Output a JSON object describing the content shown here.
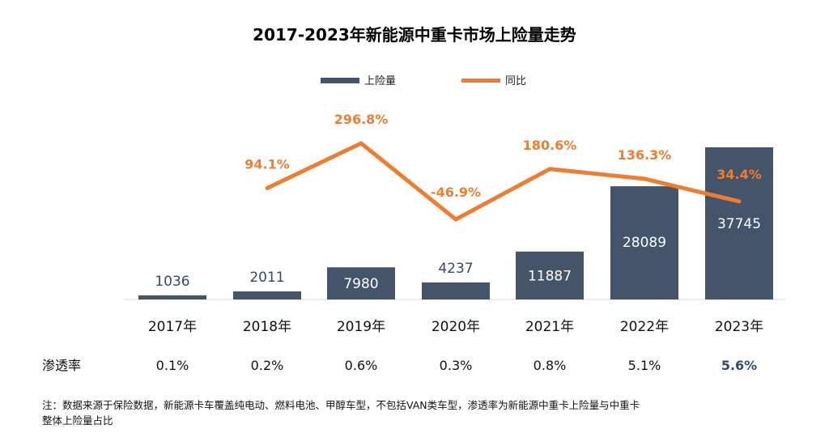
{
  "chart_data": {
    "type": "bar",
    "title": "2017-2023年新能源中重卡市场上险量走势",
    "categories": [
      "2017年",
      "2018年",
      "2019年",
      "2020年",
      "2021年",
      "2022年",
      "2023年"
    ],
    "series": [
      {
        "name": "上险量",
        "type": "bar",
        "values": [
          1036,
          2011,
          7980,
          4237,
          11887,
          28089,
          37745
        ]
      },
      {
        "name": "同比",
        "type": "line",
        "values": [
          null,
          94.1,
          296.8,
          -46.9,
          180.6,
          136.3,
          34.4
        ]
      }
    ],
    "yoy_labels": [
      "",
      "94.1%",
      "296.8%",
      "-46.9%",
      "180.6%",
      "136.3%",
      "34.4%"
    ],
    "bar_labels": [
      "1036",
      "2011",
      "7980",
      "4237",
      "11887",
      "28089",
      "37745"
    ],
    "penetration": {
      "label": "渗透率",
      "values": [
        "0.1%",
        "0.2%",
        "0.6%",
        "0.3%",
        "0.8%",
        "5.1%",
        "5.6%"
      ]
    },
    "colors": {
      "bar": "#44546a",
      "line": "#ed7d31",
      "highlight": "#2f4a74"
    },
    "legend": "top",
    "grid": false
  },
  "note": {
    "line1": "注：数据来源于保险数据，新能源卡车覆盖纯电动、燃料电池、甲醇车型，不包括VAN类车型，渗透率为新能源中重卡上险量与中重卡",
    "line2": "整体上险量占比"
  }
}
